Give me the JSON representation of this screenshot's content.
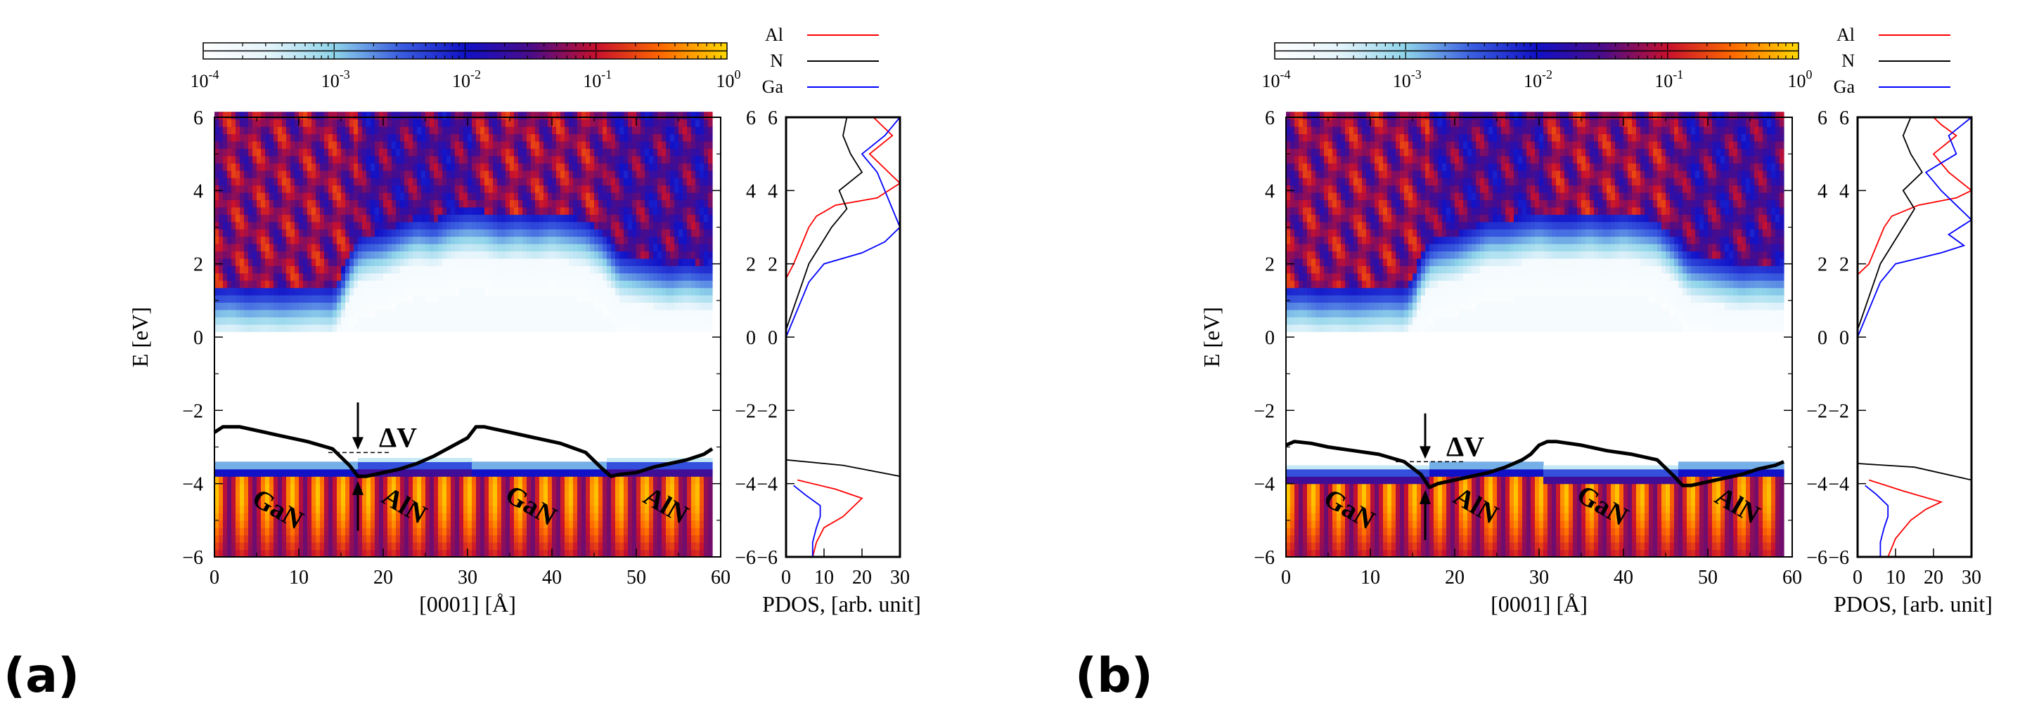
{
  "figure": {
    "colorscale": [
      "#ffffff",
      "#e4f4fb",
      "#8fd4ea",
      "#3b5fe0",
      "#1111c8",
      "#4a0c8a",
      "#c8102e",
      "#ff6a00",
      "#ffd800"
    ],
    "colorbar": {
      "ticks": [
        {
          "base": "10",
          "exp": "-4"
        },
        {
          "base": "10",
          "exp": "-3"
        },
        {
          "base": "10",
          "exp": "-2"
        },
        {
          "base": "10",
          "exp": "-1"
        },
        {
          "base": "10",
          "exp": "0"
        }
      ]
    },
    "line_color": "#000000"
  },
  "chart_data": [
    {
      "type": "heatmap",
      "panel": "(a)",
      "colorbar_range": [
        0.0001,
        1
      ],
      "colorbar_scale": "log",
      "main": {
        "xlabel": "[0001] [Å]",
        "ylabel": "E [eV]",
        "xlim": [
          0,
          60
        ],
        "ylim": [
          -6,
          6
        ],
        "xticks": [
          0,
          10,
          20,
          30,
          40,
          50,
          60
        ],
        "yticks": [
          -6,
          -4,
          -2,
          0,
          2,
          4,
          6
        ],
        "data_x_extent": [
          0,
          59
        ],
        "conduction_band_edge": {
          "x": [
            0,
            2,
            4,
            6,
            8,
            10,
            12,
            14,
            15,
            16,
            17,
            18,
            20,
            22,
            24,
            26,
            28,
            30,
            32,
            34,
            36,
            38,
            40,
            42,
            44,
            46,
            47,
            48,
            50,
            52,
            54,
            56,
            58,
            59
          ],
          "y": [
            0.05,
            0.1,
            0.0,
            0.05,
            0.0,
            0.05,
            0.1,
            0.05,
            0.4,
            1.0,
            1.4,
            1.5,
            1.6,
            1.8,
            2.0,
            1.9,
            2.1,
            2.2,
            2.15,
            2.0,
            2.1,
            2.0,
            2.1,
            2.0,
            1.9,
            1.6,
            1.3,
            1.0,
            0.9,
            0.8,
            0.7,
            0.8,
            0.7,
            0.7
          ]
        },
        "valence_band_top": -3.35,
        "band_profile": {
          "x": [
            0,
            1,
            3,
            5,
            8,
            11,
            14,
            16,
            17,
            18,
            20,
            22,
            24,
            26,
            28,
            30,
            31,
            32,
            33,
            35,
            38,
            41,
            44,
            46,
            47,
            48,
            50,
            52,
            54,
            56,
            58,
            59
          ],
          "y": [
            -2.6,
            -2.45,
            -2.45,
            -2.55,
            -2.7,
            -2.85,
            -3.05,
            -3.5,
            -3.8,
            -3.8,
            -3.7,
            -3.6,
            -3.45,
            -3.25,
            -3.0,
            -2.75,
            -2.45,
            -2.45,
            -2.5,
            -2.6,
            -2.75,
            -2.9,
            -3.15,
            -3.6,
            -3.8,
            -3.75,
            -3.7,
            -3.55,
            -3.45,
            -3.35,
            -3.2,
            -3.05
          ]
        },
        "delta_v": {
          "label": "ΔV",
          "x": 17,
          "y_top": -2.55,
          "y_bottom": -3.85,
          "ref_y": -3.15,
          "ref_x": [
            13.5,
            21
          ]
        },
        "layer_labels": [
          {
            "text": "GaN",
            "x": 7,
            "y": -4.9
          },
          {
            "text": "AlN",
            "x": 22,
            "y": -4.8
          },
          {
            "text": "GaN",
            "x": 37,
            "y": -4.8
          },
          {
            "text": "AlN",
            "x": 53,
            "y": -4.8
          }
        ]
      },
      "pdos": {
        "xlabel": "PDOS, [arb. unit]",
        "xlim": [
          0,
          30
        ],
        "ylim": [
          -6,
          6
        ],
        "xticks": [
          0,
          10,
          20,
          30
        ],
        "yticks": [
          -6,
          -4,
          -2,
          0,
          2,
          4,
          6
        ],
        "legend": "top",
        "series": [
          {
            "name": "Al",
            "color": "#ff0000",
            "segments": [
              {
                "e": [
                  -6.0,
                  -5.6,
                  -5.2,
                  -4.9,
                  -4.6,
                  -4.4,
                  -4.15,
                  -3.9
                ],
                "v": [
                  7,
                  8,
                  10,
                  15,
                  18,
                  20,
                  13,
                  3
                ]
              },
              {
                "e": [
                  1.6,
                  2.0,
                  2.5,
                  3.0,
                  3.3,
                  3.6,
                  3.8,
                  4.2,
                  4.6,
                  5.0,
                  5.5,
                  5.8,
                  6.0
                ],
                "v": [
                  0,
                  2,
                  4,
                  6,
                  8,
                  13,
                  24,
                  30,
                  26,
                  22,
                  28,
                  25,
                  23
                ]
              }
            ]
          },
          {
            "name": "N",
            "color": "#000000",
            "segments": [
              {
                "e": [
                  -3.35,
                  -3.5,
                  -3.8
                ],
                "v": [
                  0,
                  15,
                  30
                ]
              },
              {
                "e": [
                  0.2,
                  0.8,
                  1.4,
                  2.0,
                  2.5,
                  3.0,
                  3.5,
                  4.0,
                  4.5,
                  5.0,
                  5.5,
                  6.0
                ],
                "v": [
                  0,
                  2,
                  4,
                  6,
                  9,
                  12,
                  16,
                  14,
                  20,
                  17,
                  15,
                  16
                ]
              }
            ]
          },
          {
            "name": "Ga",
            "color": "#0000ff",
            "segments": [
              {
                "e": [
                  -6.0,
                  -5.6,
                  -5.2,
                  -4.9,
                  -4.6,
                  -4.3,
                  -4.05
                ],
                "v": [
                  7,
                  7,
                  8,
                  9,
                  9,
                  5,
                  2
                ]
              },
              {
                "e": [
                  0.0,
                  0.5,
                  1.0,
                  1.5,
                  2.0,
                  2.3,
                  2.6,
                  3.0,
                  3.5,
                  4.0,
                  4.5,
                  5.0,
                  5.5,
                  6.0
                ],
                "v": [
                  0,
                  2,
                  4,
                  6,
                  10,
                  20,
                  26,
                  30,
                  28,
                  26,
                  24,
                  20,
                  26,
                  30
                ]
              }
            ]
          }
        ]
      }
    },
    {
      "type": "heatmap",
      "panel": "(b)",
      "colorbar_range": [
        0.0001,
        1
      ],
      "colorbar_scale": "log",
      "main": {
        "xlabel": "[0001] [Å]",
        "ylabel": "E [eV]",
        "xlim": [
          0,
          60
        ],
        "ylim": [
          -6,
          6
        ],
        "xticks": [
          0,
          10,
          20,
          30,
          40,
          50,
          60
        ],
        "yticks": [
          -6,
          -4,
          -2,
          0,
          2,
          4,
          6
        ],
        "data_x_extent": [
          0,
          59
        ],
        "conduction_band_edge": {
          "x": [
            0,
            2,
            4,
            6,
            8,
            10,
            12,
            14,
            15,
            16,
            17,
            18,
            20,
            22,
            24,
            26,
            28,
            30,
            32,
            34,
            36,
            38,
            40,
            42,
            44,
            46,
            47,
            48,
            50,
            52,
            54,
            56,
            58,
            59
          ],
          "y": [
            0.05,
            0.1,
            0.0,
            0.05,
            0.0,
            0.05,
            0.1,
            0.05,
            0.3,
            0.9,
            1.3,
            1.4,
            1.5,
            1.7,
            1.9,
            1.9,
            2.0,
            2.1,
            2.0,
            2.0,
            2.1,
            2.0,
            2.1,
            2.0,
            1.9,
            1.5,
            1.2,
            1.0,
            0.9,
            0.8,
            0.7,
            0.75,
            0.7,
            0.7
          ]
        },
        "valence_band_top": -3.45,
        "band_profile": {
          "x": [
            0,
            1,
            3,
            5,
            8,
            11,
            14,
            16,
            17,
            18,
            20,
            22,
            24,
            26,
            28,
            29,
            30,
            31,
            32,
            35,
            38,
            41,
            44,
            46,
            47,
            48,
            50,
            52,
            54,
            56,
            58,
            59
          ],
          "y": [
            -2.95,
            -2.85,
            -2.9,
            -3.0,
            -3.1,
            -3.2,
            -3.4,
            -3.75,
            -4.1,
            -4.0,
            -3.9,
            -3.8,
            -3.7,
            -3.55,
            -3.35,
            -3.2,
            -2.95,
            -2.85,
            -2.85,
            -2.95,
            -3.1,
            -3.2,
            -3.35,
            -3.8,
            -4.05,
            -4.05,
            -3.95,
            -3.85,
            -3.75,
            -3.6,
            -3.5,
            -3.4
          ]
        },
        "delta_v": {
          "label": "ΔV",
          "x": 16.5,
          "y_top": -2.85,
          "y_bottom": -4.1,
          "ref_y": -3.4,
          "ref_x": [
            13,
            21
          ]
        },
        "layer_labels": [
          {
            "text": "GaN",
            "x": 7,
            "y": -4.9
          },
          {
            "text": "AlN",
            "x": 22,
            "y": -4.8
          },
          {
            "text": "GaN",
            "x": 37,
            "y": -4.8
          },
          {
            "text": "AlN",
            "x": 53,
            "y": -4.8
          }
        ]
      },
      "pdos": {
        "xlabel": "PDOS, [arb. unit]",
        "xlim": [
          0,
          30
        ],
        "ylim": [
          -6,
          6
        ],
        "xticks": [
          0,
          10,
          20,
          30
        ],
        "yticks": [
          -6,
          -4,
          -2,
          0,
          2,
          4,
          6
        ],
        "legend": "top",
        "series": [
          {
            "name": "Al",
            "color": "#ff0000",
            "segments": [
              {
                "e": [
                  -6.0,
                  -5.5,
                  -5.0,
                  -4.7,
                  -4.5,
                  -4.2,
                  -3.9
                ],
                "v": [
                  8,
                  10,
                  14,
                  18,
                  22,
                  12,
                  3
                ]
              },
              {
                "e": [
                  1.7,
                  2.0,
                  2.5,
                  3.0,
                  3.3,
                  3.6,
                  3.8,
                  4.0,
                  4.5,
                  5.0,
                  5.5,
                  5.8,
                  6.0
                ],
                "v": [
                  0,
                  3,
                  5,
                  7,
                  9,
                  16,
                  26,
                  30,
                  24,
                  20,
                  26,
                  22,
                  20
                ]
              }
            ]
          },
          {
            "name": "N",
            "color": "#000000",
            "segments": [
              {
                "e": [
                  -3.45,
                  -3.55,
                  -3.9
                ],
                "v": [
                  0,
                  15,
                  30
                ]
              },
              {
                "e": [
                  0.2,
                  0.8,
                  1.4,
                  2.0,
                  2.5,
                  3.0,
                  3.5,
                  4.0,
                  4.5,
                  5.0,
                  5.5,
                  6.0
                ],
                "v": [
                  0,
                  2,
                  4,
                  6,
                  9,
                  12,
                  15,
                  12,
                  17,
                  14,
                  12,
                  14
                ]
              }
            ]
          },
          {
            "name": "Ga",
            "color": "#0000ff",
            "segments": [
              {
                "e": [
                  -6.0,
                  -5.6,
                  -5.2,
                  -4.9,
                  -4.6,
                  -4.3,
                  -4.05
                ],
                "v": [
                  6,
                  6,
                  7,
                  8,
                  8,
                  5,
                  2
                ]
              },
              {
                "e": [
                  0.0,
                  0.5,
                  1.0,
                  1.5,
                  2.0,
                  2.3,
                  2.5,
                  2.8,
                  3.2,
                  3.6,
                  4.0,
                  4.5,
                  5.0,
                  5.5,
                  6.0
                ],
                "v": [
                  0,
                  2,
                  4,
                  6,
                  10,
                  22,
                  28,
                  24,
                  30,
                  26,
                  22,
                  18,
                  26,
                  24,
                  30
                ]
              }
            ]
          }
        ]
      }
    }
  ]
}
